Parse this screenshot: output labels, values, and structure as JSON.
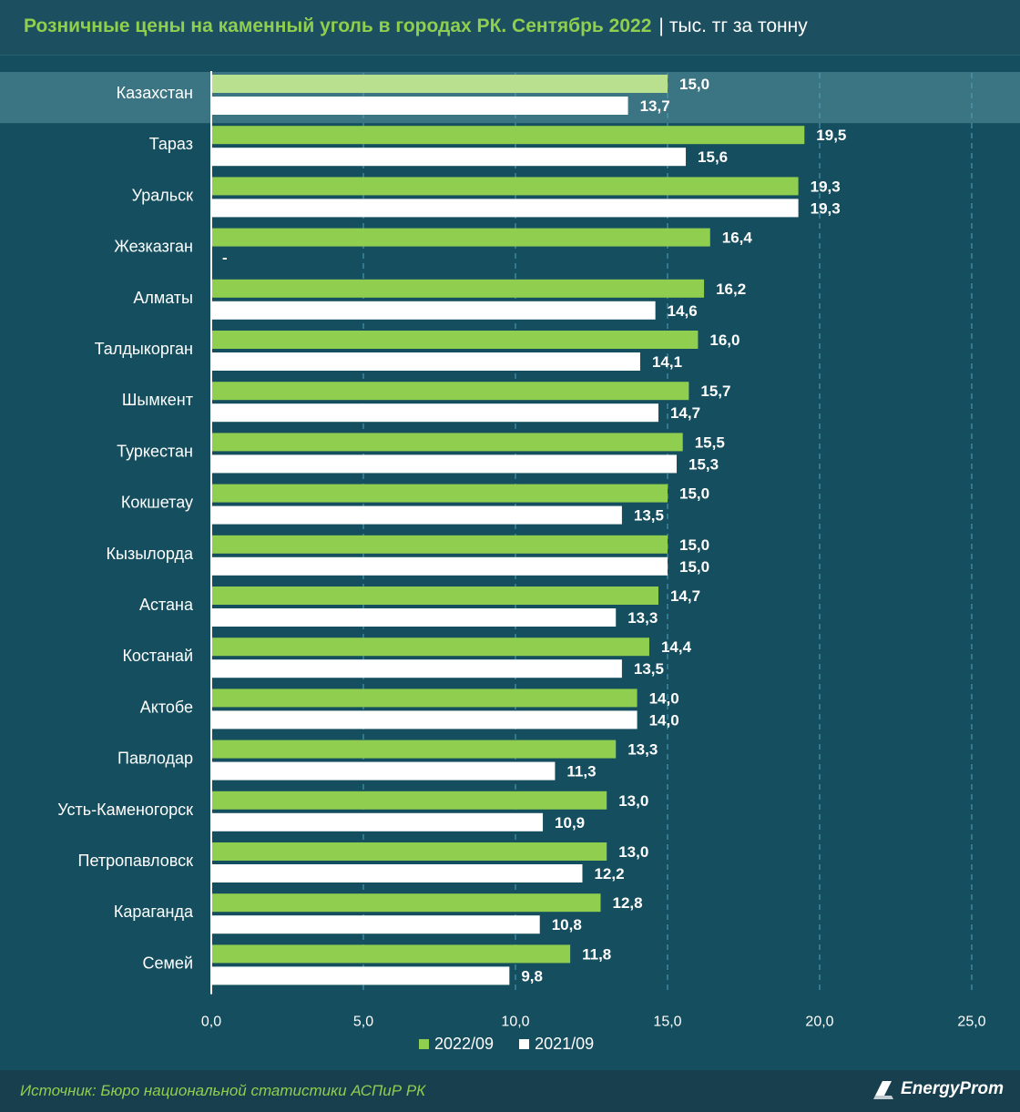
{
  "header": {
    "title": "Розничные цены на каменный уголь в городах РК. Сентябрь 2022",
    "separator": "|",
    "units": "тыс. тг за тонну"
  },
  "colors": {
    "series_2022": "#8fce4f",
    "series_2021": "#ffffff",
    "highlight_bar": "#b8e08e",
    "highlight_band": "#3b7482",
    "background": "#154e5e",
    "gridline": "#4fa3bd"
  },
  "chart_data": {
    "type": "bar",
    "orientation": "horizontal",
    "title": "Розничные цены на каменный уголь в городах РК. Сентябрь 2022",
    "xlabel": "тыс. тг за тонну",
    "ylabel": "",
    "xlim": [
      0,
      25
    ],
    "ticks": [
      "0,0",
      "5,0",
      "10,0",
      "15,0",
      "20,0",
      "25,0"
    ],
    "tick_values": [
      0,
      5,
      10,
      15,
      20,
      25
    ],
    "highlight_category": "Казахстан",
    "categories": [
      "Казахстан",
      "Тараз",
      "Уральск",
      "Жезказган",
      "Алматы",
      "Талдыкорган",
      "Шымкент",
      "Туркестан",
      "Кокшетау",
      "Кызылорда",
      "Астана",
      "Костанай",
      "Актобе",
      "Павлодар",
      "Усть-Каменогорск",
      "Петропавловск",
      "Караганда",
      "Семей"
    ],
    "series": [
      {
        "name": "2022/09",
        "values": [
          15.0,
          19.5,
          19.3,
          16.4,
          16.2,
          16.0,
          15.7,
          15.5,
          15.0,
          15.0,
          14.7,
          14.4,
          14.0,
          13.3,
          13.0,
          13.0,
          12.8,
          11.8
        ],
        "labels": [
          "15,0",
          "19,5",
          "19,3",
          "16,4",
          "16,2",
          "16,0",
          "15,7",
          "15,5",
          "15,0",
          "15,0",
          "14,7",
          "14,4",
          "14,0",
          "13,3",
          "13,0",
          "13,0",
          "12,8",
          "11,8"
        ]
      },
      {
        "name": "2021/09",
        "values": [
          13.7,
          15.6,
          19.3,
          null,
          14.6,
          14.1,
          14.7,
          15.3,
          13.5,
          15.0,
          13.3,
          13.5,
          14.0,
          11.3,
          10.9,
          12.2,
          10.8,
          9.8
        ],
        "labels": [
          "13,7",
          "15,6",
          "19,3",
          "-",
          "14,6",
          "14,1",
          "14,7",
          "15,3",
          "13,5",
          "15,0",
          "13,3",
          "13,5",
          "14,0",
          "11,3",
          "10,9",
          "12,2",
          "10,8",
          "9,8"
        ]
      }
    ],
    "legend": [
      "2022/09",
      "2021/09"
    ],
    "legend_position": "bottom"
  },
  "footer": {
    "source": "Источник: Бюро национальной статистики АСПиР РК",
    "brand": "EnergyProm"
  }
}
